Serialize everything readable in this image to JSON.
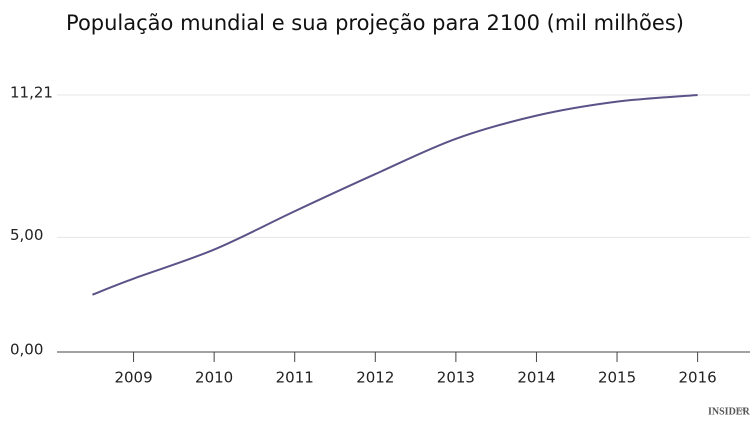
{
  "chart_data": {
    "type": "line",
    "title": "População mundial e sua projeção para 2100 (mil milhões)",
    "x": [
      2008.49,
      2009,
      2010,
      2011,
      2012,
      2013,
      2014,
      2015,
      2016
    ],
    "values": [
      2.5,
      3.2,
      4.47,
      6.14,
      7.76,
      9.3,
      10.31,
      10.92,
      11.21
    ],
    "color": "#5b5388",
    "xlim": [
      2008.05,
      2016.65
    ],
    "xticks": [
      2009,
      2010,
      2011,
      2012,
      2013,
      2014,
      2015,
      2016
    ],
    "ylim": [
      0,
      11.21
    ],
    "yticks": [
      {
        "value": 0,
        "label": "0,00"
      },
      {
        "value": 5,
        "label": "5,00"
      },
      {
        "value": 11.21,
        "label": "11,21"
      }
    ],
    "grid": true,
    "brand": "INSIDER",
    "brand_sub": "PRO"
  }
}
